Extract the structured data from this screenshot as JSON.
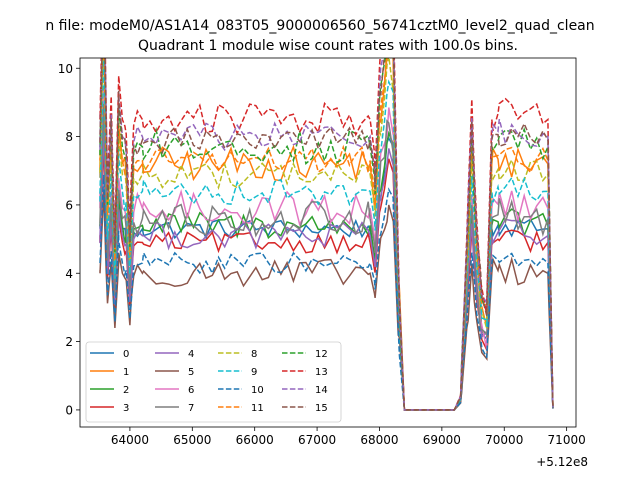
{
  "chart_data": {
    "type": "line",
    "suptitle": "n file: modeM0/AS1A14_083T05_9000006560_56741cztM0_level2_quad_clean",
    "title": "Quadrant 1 module wise count rates with 100.0s bins.",
    "xlabel": "",
    "ylabel": "",
    "x_offset_label": "+5.12e8",
    "xlim": [
      63200,
      71150
    ],
    "ylim": [
      -0.5,
      10.3
    ],
    "x_ticks": [
      64000,
      65000,
      66000,
      67000,
      68000,
      69000,
      70000,
      71000
    ],
    "x_tick_labels": [
      "64000",
      "65000",
      "66000",
      "67000",
      "68000",
      "69000",
      "70000",
      "71000"
    ],
    "y_ticks": [
      0,
      2,
      4,
      6,
      8,
      10
    ],
    "y_tick_labels": [
      "0",
      "2",
      "4",
      "6",
      "8",
      "10"
    ],
    "legend": {
      "location": "lower-left",
      "ncol": 4
    },
    "series": [
      {
        "name": "0",
        "color": "#1f77b4",
        "style": "solid",
        "base": 5.3,
        "noise": 0.15
      },
      {
        "name": "1",
        "color": "#ff7f0e",
        "style": "solid",
        "base": 7.2,
        "noise": 0.25
      },
      {
        "name": "2",
        "color": "#2ca02c",
        "style": "solid",
        "base": 5.4,
        "noise": 0.2
      },
      {
        "name": "3",
        "color": "#d62728",
        "style": "solid",
        "base": 4.9,
        "noise": 0.15
      },
      {
        "name": "4",
        "color": "#9467bd",
        "style": "solid",
        "base": 5.1,
        "noise": 0.2
      },
      {
        "name": "5",
        "color": "#8c564b",
        "style": "solid",
        "base": 4.0,
        "noise": 0.2
      },
      {
        "name": "6",
        "color": "#e377c2",
        "style": "solid",
        "base": 5.9,
        "noise": 0.25
      },
      {
        "name": "7",
        "color": "#7f7f7f",
        "style": "solid",
        "base": 5.6,
        "noise": 0.25
      },
      {
        "name": "8",
        "color": "#bcbd22",
        "style": "dashed",
        "base": 6.9,
        "noise": 0.2
      },
      {
        "name": "9",
        "color": "#17becf",
        "style": "dashed",
        "base": 6.4,
        "noise": 0.2
      },
      {
        "name": "10",
        "color": "#1f77b4",
        "style": "dashed",
        "base": 4.3,
        "noise": 0.15
      },
      {
        "name": "11",
        "color": "#ff7f0e",
        "style": "dashed",
        "base": 7.3,
        "noise": 0.2
      },
      {
        "name": "12",
        "color": "#2ca02c",
        "style": "dashed",
        "base": 7.7,
        "noise": 0.25
      },
      {
        "name": "13",
        "color": "#d62728",
        "style": "dashed",
        "base": 8.5,
        "noise": 0.25
      },
      {
        "name": "14",
        "color": "#9467bd",
        "style": "dashed",
        "base": 8.0,
        "noise": 0.2
      },
      {
        "name": "15",
        "color": "#8c564b",
        "style": "dashed",
        "base": 7.9,
        "noise": 0.2
      }
    ],
    "x_range": {
      "start": 63520,
      "end": 70780,
      "step": 100
    },
    "shape_x": [
      63520,
      63580,
      63640,
      63700,
      63760,
      63820,
      63880,
      63940,
      64000,
      64060,
      64200,
      67850,
      67930,
      68000,
      68080,
      68150,
      68220,
      68300,
      68400,
      69200,
      69300,
      69400,
      69480,
      69560,
      69640,
      69720,
      69800,
      69900,
      70700,
      70780
    ],
    "shape_f": [
      1.0,
      1.6,
      0.78,
      1.08,
      0.6,
      1.15,
      1.0,
      0.95,
      0.62,
      0.98,
      1.0,
      1.0,
      0.82,
      1.18,
      1.32,
      1.5,
      1.4,
      0.55,
      0.0,
      0.0,
      0.05,
      0.6,
      1.07,
      0.65,
      0.42,
      0.38,
      1.0,
      1.02,
      1.0,
      0.01
    ]
  }
}
